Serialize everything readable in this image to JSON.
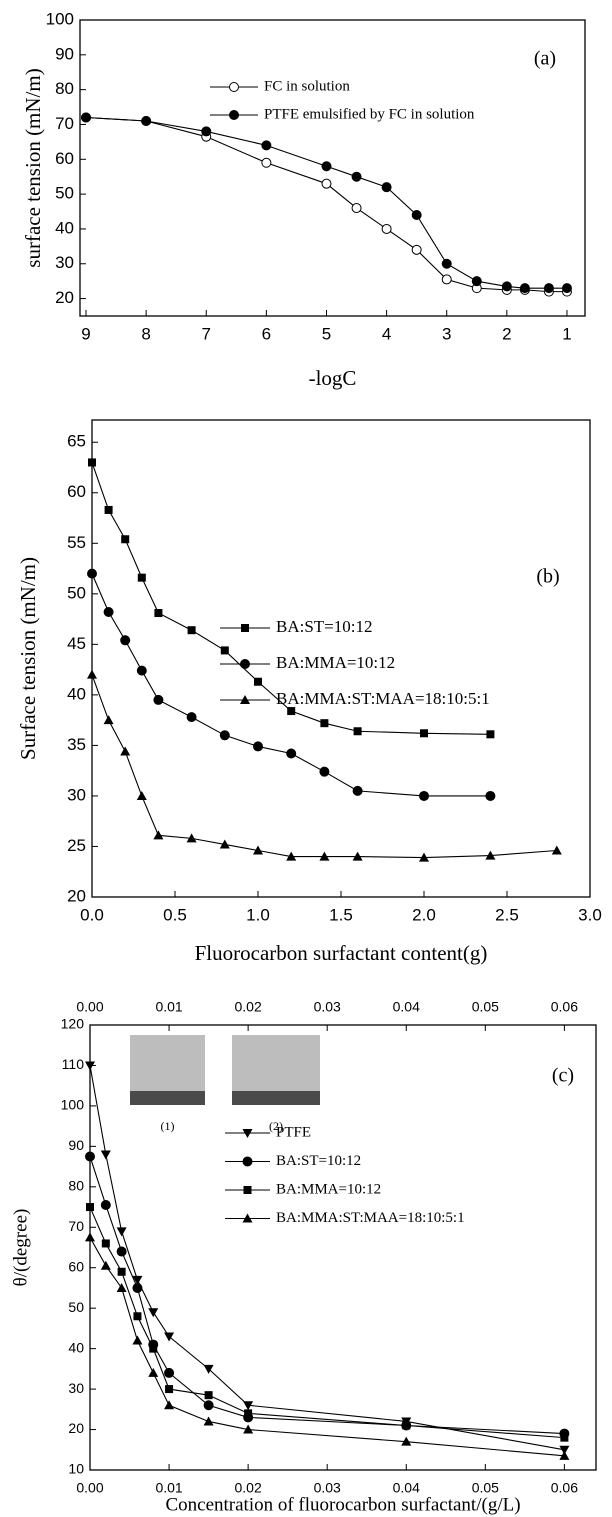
{
  "chart_data": [
    {
      "type": "line",
      "panel_label": "(a)",
      "xlabel": "-logC",
      "ylabel": "surface tension (mN/m)",
      "xlim": [
        9.1,
        0.7
      ],
      "ylim": [
        15,
        100
      ],
      "xticks": [
        9,
        8,
        7,
        6,
        5,
        4,
        3,
        2,
        1
      ],
      "yticks": [
        20,
        30,
        40,
        50,
        60,
        70,
        80,
        90,
        100
      ],
      "series": [
        {
          "name": "FC in solution",
          "color": "#000000",
          "marker": "circle-open",
          "x": [
            9,
            8,
            7,
            6,
            5,
            4.5,
            4,
            3.5,
            3,
            2.5,
            2,
            1.7,
            1.3,
            1
          ],
          "values": [
            72,
            71,
            66.5,
            59,
            53,
            46,
            40,
            34,
            25.5,
            23,
            22.5,
            22.5,
            22,
            22
          ]
        },
        {
          "name": "PTFE emulsified by FC in solution",
          "color": "#000000",
          "marker": "circle",
          "x": [
            9,
            8,
            7,
            6,
            5,
            4.5,
            4,
            3.5,
            3,
            2.5,
            2,
            1.7,
            1.3,
            1
          ],
          "values": [
            72,
            71,
            68,
            64,
            58,
            55,
            52,
            44,
            30,
            25,
            23.5,
            23,
            23,
            23
          ]
        }
      ]
    },
    {
      "type": "line",
      "panel_label": "(b)",
      "xlabel": "Fluorocarbon surfactant content(g)",
      "ylabel": "Surface tension (mN/m)",
      "xlim": [
        0,
        3.0
      ],
      "ylim": [
        20,
        67.2
      ],
      "xticks": [
        {
          "value": 0,
          "label": "0.0"
        },
        0.5,
        {
          "value": 1,
          "label": "1.0"
        },
        1.5,
        {
          "value": 2,
          "label": "2.0"
        },
        2.5,
        {
          "value": 3,
          "label": "3.0"
        }
      ],
      "yticks": [
        20,
        25,
        30,
        35,
        40,
        45,
        50,
        55,
        60,
        65
      ],
      "series": [
        {
          "name": "BA:ST=10:12",
          "color": "#000000",
          "marker": "square",
          "x": [
            0,
            0.1,
            0.2,
            0.3,
            0.4,
            0.6,
            0.8,
            1.0,
            1.2,
            1.4,
            1.6,
            2.0,
            2.4
          ],
          "values": [
            63,
            58.3,
            55.4,
            51.6,
            48.1,
            46.4,
            44.4,
            41.3,
            38.4,
            37.2,
            36.4,
            36.2,
            36.1
          ]
        },
        {
          "name": "BA:MMA=10:12",
          "color": "#000000",
          "marker": "circle",
          "x": [
            0,
            0.1,
            0.2,
            0.3,
            0.4,
            0.6,
            0.8,
            1.0,
            1.2,
            1.4,
            1.6,
            2.0,
            2.4
          ],
          "values": [
            52,
            48.2,
            45.4,
            42.4,
            39.5,
            37.8,
            36,
            34.9,
            34.2,
            32.4,
            30.5,
            30,
            30
          ]
        },
        {
          "name": "BA:MMA:ST:MAA=18:10:5:1",
          "color": "#000000",
          "marker": "triangle",
          "x": [
            0,
            0.1,
            0.2,
            0.3,
            0.4,
            0.6,
            0.8,
            1.0,
            1.2,
            1.4,
            1.6,
            2.0,
            2.4,
            2.8
          ],
          "values": [
            42,
            37.5,
            34.4,
            30,
            26.1,
            25.8,
            25.2,
            24.6,
            24,
            24,
            24,
            23.9,
            24.1,
            24.6
          ]
        }
      ]
    },
    {
      "type": "line",
      "panel_label": "(c)",
      "xlabel": "Concentration of fluorocarbon surfactant/(g/L)",
      "ylabel": "θ/(degree)",
      "xlim": [
        0,
        0.064
      ],
      "ylim": [
        10,
        120
      ],
      "top_axis": true,
      "xticks": [
        {
          "value": 0,
          "label": "0.00"
        },
        0.01,
        0.02,
        0.03,
        0.04,
        0.05,
        0.06
      ],
      "yticks": [
        10,
        20,
        30,
        40,
        50,
        60,
        70,
        80,
        90,
        100,
        110,
        120
      ],
      "inset_labels": [
        "(1)",
        "(2)"
      ],
      "series": [
        {
          "name": "PTFE",
          "color": "#000000",
          "marker": "triangle-down",
          "x": [
            0,
            0.002,
            0.004,
            0.006,
            0.008,
            0.01,
            0.015,
            0.02,
            0.04,
            0.06
          ],
          "values": [
            110,
            88,
            69,
            57,
            49,
            43,
            35,
            26,
            22,
            15
          ]
        },
        {
          "name": "BA:ST=10:12",
          "color": "#000000",
          "marker": "circle",
          "x": [
            0,
            0.002,
            0.004,
            0.006,
            0.008,
            0.01,
            0.015,
            0.02,
            0.04,
            0.06
          ],
          "values": [
            87.5,
            75.5,
            64,
            55,
            41,
            34,
            26,
            23,
            21,
            19
          ]
        },
        {
          "name": "BA:MMA=10:12",
          "color": "#000000",
          "marker": "square",
          "x": [
            0,
            0.002,
            0.004,
            0.006,
            0.008,
            0.01,
            0.015,
            0.02,
            0.04,
            0.06
          ],
          "values": [
            75,
            66,
            59,
            48,
            40,
            30,
            28.5,
            24,
            21,
            18
          ]
        },
        {
          "name": "BA:MMA:ST:MAA=18:10:5:1",
          "color": "#000000",
          "marker": "triangle",
          "x": [
            0,
            0.002,
            0.004,
            0.006,
            0.008,
            0.01,
            0.015,
            0.02,
            0.04,
            0.06
          ],
          "values": [
            67.5,
            60.5,
            55,
            42,
            34,
            26,
            22,
            20,
            17,
            13.5
          ]
        }
      ]
    }
  ]
}
